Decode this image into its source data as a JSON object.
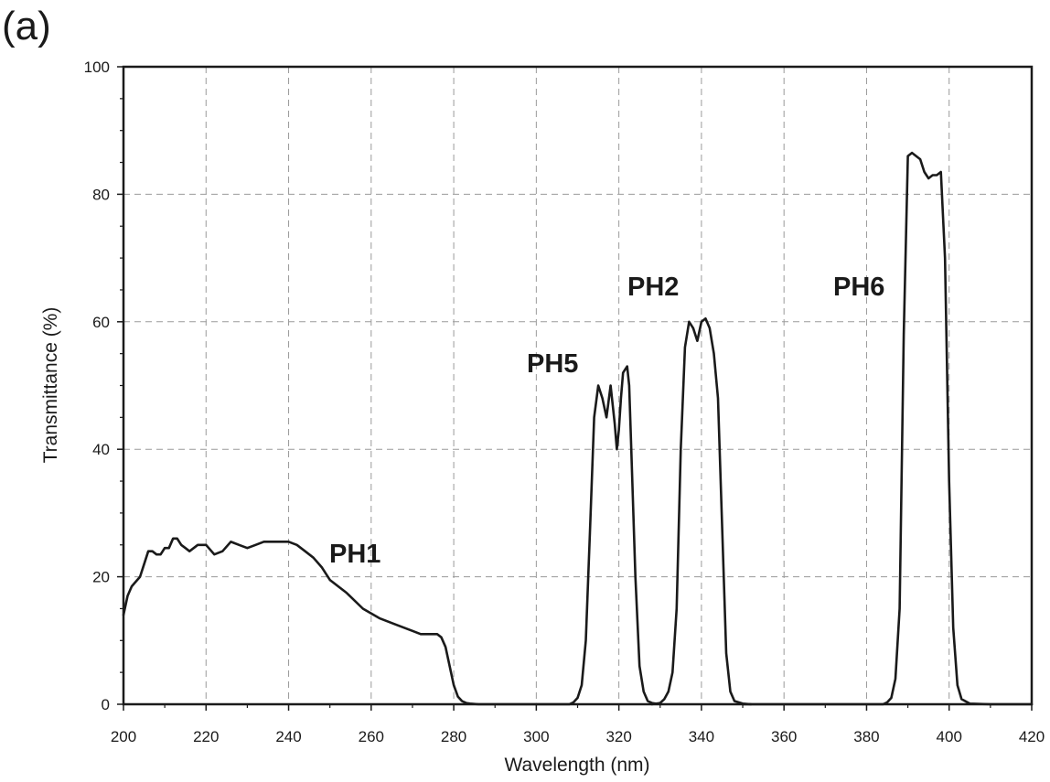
{
  "panel_label": "(a)",
  "chart_data": {
    "type": "line",
    "title": "",
    "xlabel": "Wavelength (nm)",
    "ylabel": "Transmittance (%)",
    "xlim": [
      200,
      420
    ],
    "ylim": [
      0,
      100
    ],
    "xticks": [
      200,
      220,
      240,
      260,
      280,
      300,
      320,
      340,
      360,
      380,
      400,
      420
    ],
    "yticks": [
      0,
      20,
      40,
      60,
      80,
      100
    ],
    "grid": true,
    "line_color": "#1a1a1a",
    "annotations": [
      "PH1",
      "PH5",
      "PH2",
      "PH6"
    ],
    "series": [
      {
        "name": "PH1",
        "x": [
          200,
          201,
          202,
          204,
          205,
          206,
          207,
          208,
          209,
          210,
          211,
          212,
          213,
          214,
          215,
          216,
          218,
          220,
          222,
          224,
          226,
          228,
          230,
          232,
          234,
          236,
          238,
          240,
          242,
          244,
          246,
          248,
          250,
          254,
          258,
          262,
          266,
          270,
          272,
          274,
          276,
          277,
          278,
          279,
          280,
          281,
          282,
          283,
          284,
          286,
          290,
          300
        ],
        "y": [
          14,
          17,
          18.5,
          20,
          22,
          24,
          24,
          23.5,
          23.5,
          24.5,
          24.5,
          26,
          26,
          25,
          24.5,
          24,
          25,
          25,
          23.5,
          24,
          25.5,
          25,
          24.5,
          25,
          25.5,
          25.5,
          25.5,
          25.5,
          25,
          24,
          23,
          21.5,
          19.5,
          17.5,
          15,
          13.5,
          12.5,
          11.5,
          11,
          11,
          11,
          10.5,
          9,
          6,
          3,
          1.2,
          0.5,
          0.2,
          0.1,
          0,
          0,
          0
        ]
      },
      {
        "name": "PH5",
        "x": [
          300,
          308,
          309,
          310,
          311,
          312,
          313,
          314,
          315,
          316,
          317,
          318,
          319,
          319.5,
          320,
          320.5,
          321,
          322,
          322.5,
          323,
          324,
          325,
          326,
          327,
          328,
          330
        ],
        "y": [
          0,
          0,
          0.3,
          1,
          3,
          10,
          27,
          45,
          50,
          48,
          45,
          50,
          44,
          40,
          43,
          48,
          52,
          53,
          50,
          40,
          20,
          6,
          2,
          0.5,
          0.2,
          0
        ],
        "line_only": true
      },
      {
        "name": "PH2",
        "x": [
          328,
          330,
          331,
          332,
          333,
          334,
          335,
          336,
          337,
          338,
          339,
          340,
          341,
          342,
          343,
          344,
          345,
          346,
          347,
          348,
          350,
          352
        ],
        "y": [
          0,
          0.2,
          0.8,
          2,
          5,
          15,
          40,
          56,
          60,
          59,
          57,
          60,
          60.5,
          59,
          55,
          48,
          28,
          8,
          2,
          0.5,
          0.1,
          0
        ],
        "line_only": true
      },
      {
        "name": "PH6",
        "x": [
          350,
          384,
          385,
          386,
          387,
          388,
          389,
          390,
          391,
          392,
          393,
          394,
          395,
          396,
          397,
          398,
          399,
          400,
          401,
          402,
          403,
          405,
          410,
          420
        ],
        "y": [
          0,
          0,
          0.3,
          1,
          4,
          15,
          58,
          86,
          86.5,
          86,
          85.5,
          83.5,
          82.5,
          83,
          83,
          83.5,
          70,
          35,
          12,
          3,
          0.8,
          0.1,
          0,
          0
        ],
        "line_only": true
      }
    ]
  }
}
